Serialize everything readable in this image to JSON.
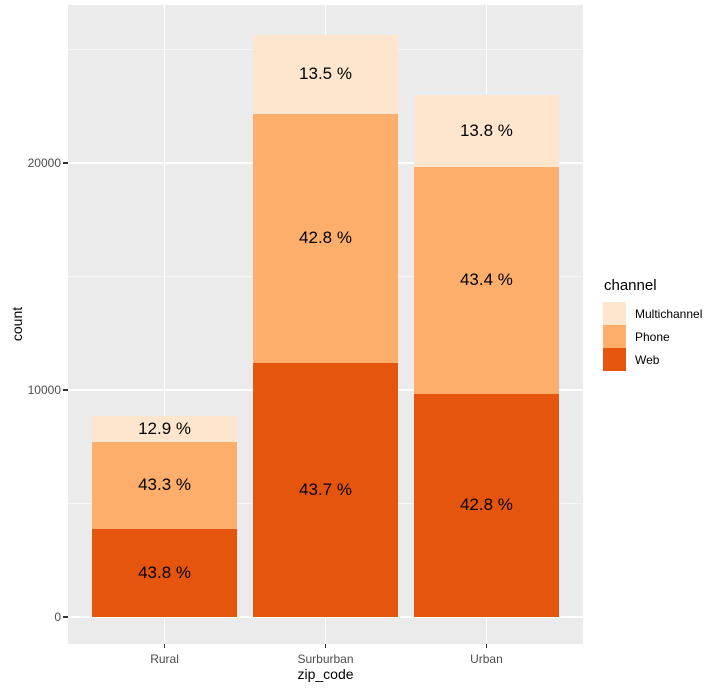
{
  "chart_data": {
    "type": "bar",
    "variant": "stacked",
    "title": "",
    "xlabel": "zip_code",
    "ylabel": "count",
    "legend_title": "channel",
    "legend_position": "right",
    "grid": true,
    "categories": [
      "Rural",
      "Surburban",
      "Urban"
    ],
    "series": [
      {
        "name": "Web",
        "color": "#E6550D",
        "values": [
          3878,
          11205,
          9844
        ],
        "percent_labels": [
          "43.8 %",
          "43.7 %",
          "42.8 %"
        ]
      },
      {
        "name": "Phone",
        "color": "#FDAE6B",
        "values": [
          3834,
          10974,
          9982
        ],
        "percent_labels": [
          "43.3 %",
          "42.8 %",
          "43.4 %"
        ]
      },
      {
        "name": "Multichannel",
        "color": "#FEE6CE",
        "values": [
          1142,
          3461,
          3174
        ],
        "percent_labels": [
          "12.9 %",
          "13.5 %",
          "13.8 %"
        ]
      }
    ],
    "stack_order_bottom_to_top": [
      "Web",
      "Phone",
      "Multichannel"
    ],
    "category_totals": [
      8854,
      25640,
      23000
    ],
    "legend_entries": [
      {
        "label": "Multichannel",
        "color": "#FEE6CE"
      },
      {
        "label": "Phone",
        "color": "#FDAE6B"
      },
      {
        "label": "Web",
        "color": "#E6550D"
      }
    ],
    "y_axis": {
      "ticks": [
        0,
        10000,
        20000
      ],
      "tick_labels": [
        "0",
        "10000",
        "20000"
      ],
      "minor_ticks": [
        5000,
        15000,
        25000
      ],
      "range_shown": [
        -1300,
        26900
      ]
    },
    "x_axis": {
      "tick_labels": [
        "Rural",
        "Surburban",
        "Urban"
      ]
    }
  },
  "theme": {
    "panel_bg": "#EBEBEB",
    "grid_major_color": "#FFFFFF",
    "tick_label_color": "#4D4D4D",
    "axis_title_color": "#000000",
    "bar_label_color": "#000000"
  }
}
